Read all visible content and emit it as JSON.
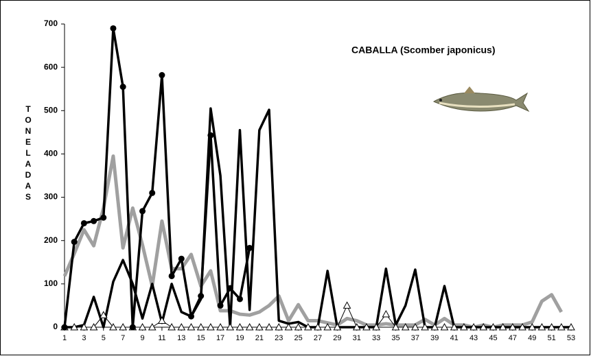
{
  "chart_data": {
    "type": "line",
    "title": "CABALLA  (Scomber japonicus)",
    "y_label": "TONELADAS",
    "x": [
      1,
      2,
      3,
      4,
      5,
      6,
      7,
      8,
      9,
      10,
      11,
      12,
      13,
      14,
      15,
      16,
      17,
      18,
      19,
      20,
      21,
      22,
      23,
      24,
      25,
      26,
      27,
      28,
      29,
      30,
      31,
      32,
      33,
      34,
      35,
      36,
      37,
      38,
      39,
      40,
      41,
      42,
      43,
      44,
      45,
      46,
      47,
      48,
      49,
      50,
      51,
      52,
      53
    ],
    "xlim": [
      1,
      53
    ],
    "xticks": [
      1,
      3,
      5,
      7,
      9,
      11,
      13,
      15,
      17,
      19,
      21,
      23,
      25,
      27,
      29,
      31,
      33,
      35,
      37,
      39,
      41,
      43,
      45,
      47,
      49,
      51,
      53
    ],
    "ylim": [
      0,
      700
    ],
    "yticks": [
      0,
      100,
      200,
      300,
      400,
      500,
      600,
      700
    ],
    "grid": false,
    "series": [
      {
        "color": "#a0a0a0",
        "line_width": 5,
        "marker": "none",
        "values": [
          118,
          170,
          225,
          188,
          275,
          395,
          183,
          275,
          190,
          95,
          245,
          135,
          135,
          168,
          95,
          130,
          38,
          38,
          30,
          28,
          35,
          50,
          72,
          15,
          52,
          15,
          15,
          10,
          5,
          20,
          15,
          5,
          5,
          8,
          5,
          5,
          5,
          18,
          5,
          20,
          5,
          5,
          0,
          5,
          0,
          5,
          5,
          5,
          12,
          60,
          75,
          35,
          null
        ]
      },
      {
        "color": "#000000",
        "line_width": 3.5,
        "marker": "none",
        "values": [
          0,
          0,
          5,
          70,
          0,
          105,
          155,
          100,
          20,
          100,
          10,
          100,
          35,
          25,
          65,
          505,
          350,
          0,
          455,
          40,
          455,
          502,
          15,
          8,
          12,
          0,
          0,
          130,
          0,
          0,
          0,
          0,
          0,
          135,
          5,
          50,
          133,
          0,
          0,
          95,
          0,
          0,
          0,
          0,
          0,
          0,
          0,
          0,
          0,
          0,
          0,
          0,
          0
        ]
      },
      {
        "color": "#000000",
        "line_width": 1,
        "marker": "triangle",
        "values": [
          0,
          0,
          0,
          0,
          28,
          0,
          0,
          0,
          0,
          0,
          15,
          0,
          0,
          0,
          0,
          0,
          0,
          0,
          0,
          0,
          0,
          0,
          0,
          0,
          0,
          0,
          0,
          0,
          0,
          50,
          0,
          0,
          0,
          30,
          0,
          0,
          0,
          0,
          0,
          0,
          0,
          0,
          0,
          0,
          0,
          0,
          0,
          0,
          0,
          0,
          0,
          0,
          0
        ]
      },
      {
        "color": "#000000",
        "line_width": 3.5,
        "marker": "circle",
        "values": [
          0,
          197,
          240,
          245,
          253,
          690,
          555,
          0,
          268,
          310,
          582,
          118,
          158,
          25,
          72,
          443,
          50,
          90,
          65,
          183,
          null,
          null,
          null,
          null,
          null,
          null,
          null,
          null,
          null,
          null,
          null,
          null,
          null,
          null,
          null,
          null,
          null,
          null,
          null,
          null,
          null,
          null,
          null,
          null,
          null,
          null,
          null,
          null,
          null,
          null,
          null,
          null,
          null
        ]
      }
    ]
  }
}
